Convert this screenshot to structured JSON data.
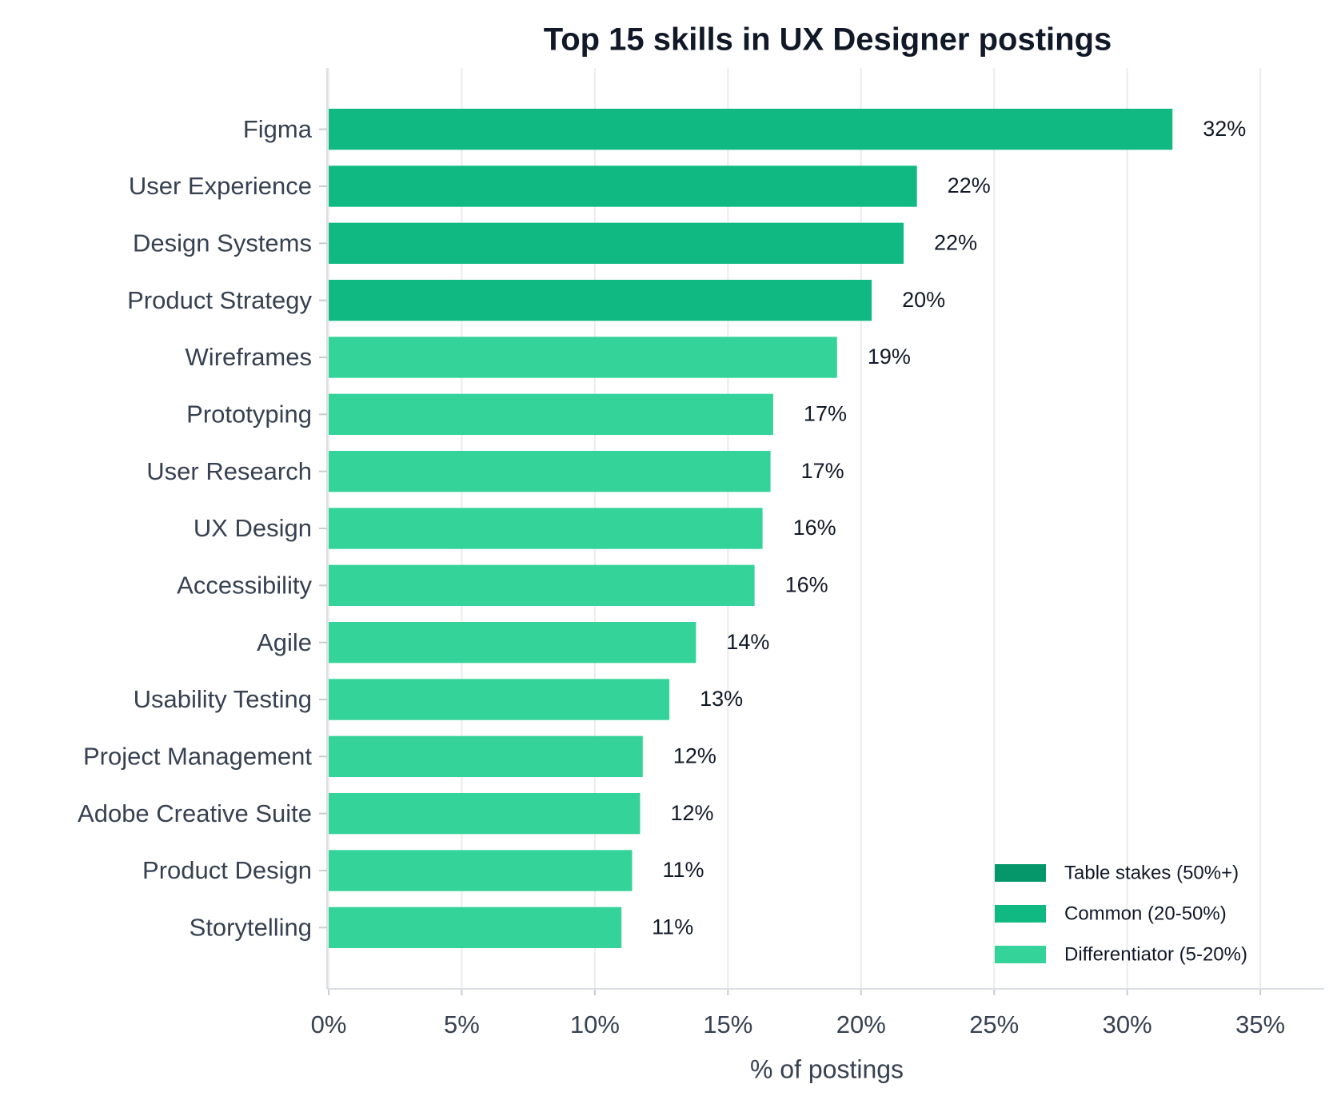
{
  "chart_data": {
    "type": "bar",
    "orientation": "horizontal",
    "title": "Top 15 skills in UX Designer postings",
    "x_label": "% of postings",
    "categories": [
      "Figma",
      "User Experience",
      "Design Systems",
      "Product Strategy",
      "Wireframes",
      "Prototyping",
      "User Research",
      "UX Design",
      "Accessibility",
      "Agile",
      "Usability Testing",
      "Project Management",
      "Adobe Creative Suite",
      "Product Design",
      "Storytelling"
    ],
    "values": [
      31.7,
      22.1,
      21.6,
      20.4,
      19.1,
      16.7,
      16.6,
      16.3,
      16.0,
      13.8,
      12.8,
      11.8,
      11.7,
      11.4,
      11.0
    ],
    "value_labels": [
      "32%",
      "22%",
      "22%",
      "20%",
      "19%",
      "17%",
      "17%",
      "16%",
      "16%",
      "14%",
      "13%",
      "12%",
      "12%",
      "11%",
      "11%"
    ],
    "colors": [
      "#10b981",
      "#10b981",
      "#10b981",
      "#10b981",
      "#34d399",
      "#34d399",
      "#34d399",
      "#34d399",
      "#34d399",
      "#34d399",
      "#34d399",
      "#34d399",
      "#34d399",
      "#34d399",
      "#34d399"
    ],
    "legend": [
      {
        "name": "Table stakes (50%+)",
        "color": "#059669"
      },
      {
        "name": "Common (20-50%)",
        "color": "#10b981"
      },
      {
        "name": "Differentiator (5-20%)",
        "color": "#34d399"
      }
    ],
    "legend_position": "lower right",
    "xlim": [
      0,
      37.4
    ],
    "xticks": [
      {
        "value": 0,
        "label": "0%"
      },
      {
        "value": 5,
        "label": "5%"
      },
      {
        "value": 10,
        "label": "10%"
      },
      {
        "value": 15,
        "label": "15%"
      },
      {
        "value": 20,
        "label": "20%"
      },
      {
        "value": 25,
        "label": "25%"
      },
      {
        "value": 30,
        "label": "30%"
      },
      {
        "value": 35,
        "label": "35%"
      }
    ],
    "grid": true
  }
}
